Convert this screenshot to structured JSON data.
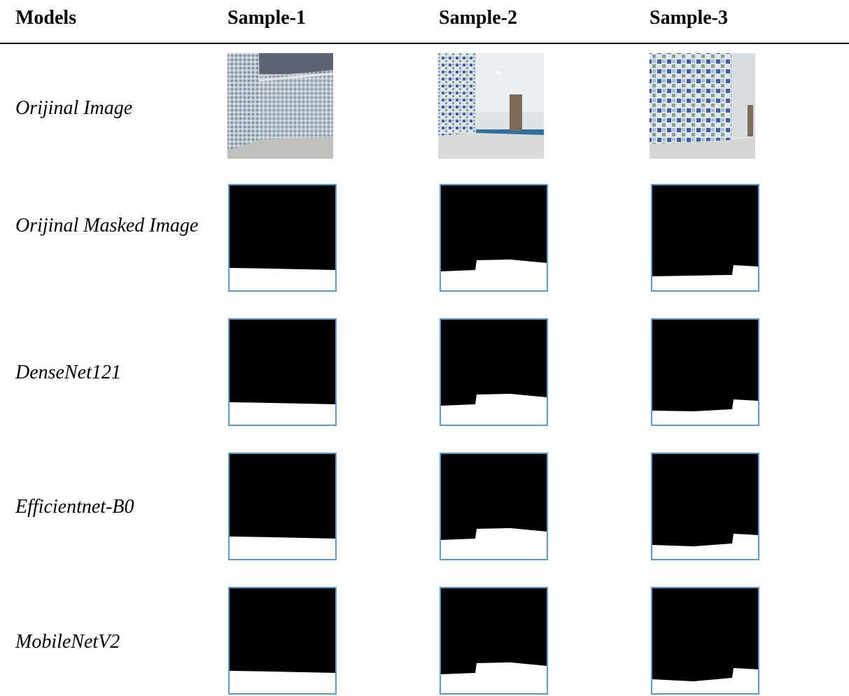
{
  "header": {
    "columns": [
      "Models",
      "Sample-1",
      "Sample-2",
      "Sample-3"
    ]
  },
  "rows": [
    {
      "label": "Orijinal Image"
    },
    {
      "label": "Orijinal Masked Image"
    },
    {
      "label": "DenseNet121"
    },
    {
      "label": "Efficientnet-B0"
    },
    {
      "label": "MobileNetV2"
    }
  ]
}
